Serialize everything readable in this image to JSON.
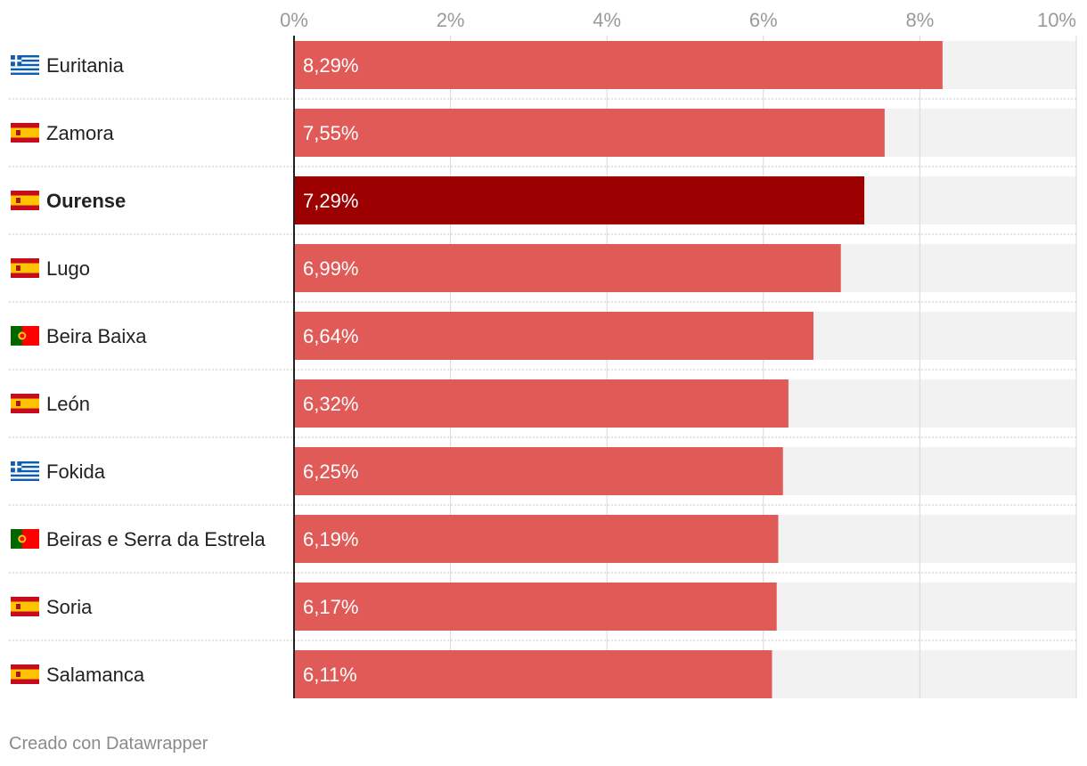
{
  "chart_data": {
    "type": "bar",
    "orientation": "horizontal",
    "xlim": [
      0,
      10
    ],
    "ticks": [
      {
        "value": 0,
        "label": "0%"
      },
      {
        "value": 2,
        "label": "2%"
      },
      {
        "value": 4,
        "label": "4%"
      },
      {
        "value": 6,
        "label": "6%"
      },
      {
        "value": 8,
        "label": "8%"
      },
      {
        "value": 10,
        "label": "10%"
      }
    ],
    "rows": [
      {
        "label": "Euritania",
        "flag": "greece-flag-icon",
        "value": 8.29,
        "value_label": "8,29%",
        "highlight": false
      },
      {
        "label": "Zamora",
        "flag": "spain-flag-icon",
        "value": 7.55,
        "value_label": "7,55%",
        "highlight": false
      },
      {
        "label": "Ourense",
        "flag": "spain-flag-icon",
        "value": 7.29,
        "value_label": "7,29%",
        "highlight": true
      },
      {
        "label": "Lugo",
        "flag": "spain-flag-icon",
        "value": 6.99,
        "value_label": "6,99%",
        "highlight": false
      },
      {
        "label": "Beira Baixa",
        "flag": "portugal-flag-icon",
        "value": 6.64,
        "value_label": "6,64%",
        "highlight": false
      },
      {
        "label": "León",
        "flag": "spain-flag-icon",
        "value": 6.32,
        "value_label": "6,32%",
        "highlight": false
      },
      {
        "label": "Fokida",
        "flag": "greece-flag-icon",
        "value": 6.25,
        "value_label": "6,25%",
        "highlight": false
      },
      {
        "label": "Beiras e Serra da Estrela",
        "flag": "portugal-flag-icon",
        "value": 6.19,
        "value_label": "6,19%",
        "highlight": false
      },
      {
        "label": "Soria",
        "flag": "spain-flag-icon",
        "value": 6.17,
        "value_label": "6,17%",
        "highlight": false
      },
      {
        "label": "Salamanca",
        "flag": "spain-flag-icon",
        "value": 6.11,
        "value_label": "6,11%",
        "highlight": false
      }
    ]
  },
  "colors": {
    "bar": "#e05b58",
    "bar_highlight": "#9c0000",
    "track": "#f2f2f2",
    "grid": "#d9d9d9",
    "axis": "#222222",
    "tick_text": "#9a9a9a",
    "label_text": "#222222",
    "value_text": "#ffffff"
  },
  "footer": {
    "credit": "Creado con Datawrapper"
  }
}
